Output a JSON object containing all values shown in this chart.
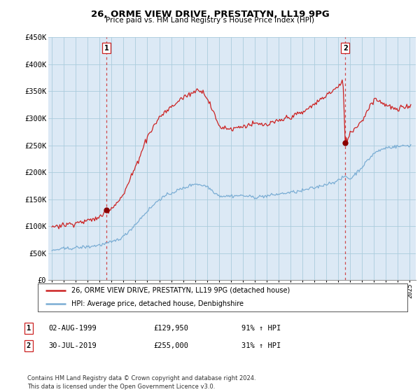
{
  "title": "26, ORME VIEW DRIVE, PRESTATYN, LL19 9PG",
  "subtitle": "Price paid vs. HM Land Registry’s House Price Index (HPI)",
  "ylim": [
    0,
    450000
  ],
  "yticks": [
    0,
    50000,
    100000,
    150000,
    200000,
    250000,
    300000,
    350000,
    400000,
    450000
  ],
  "ytick_labels": [
    "£0",
    "£50K",
    "£100K",
    "£150K",
    "£200K",
    "£250K",
    "£300K",
    "£350K",
    "£400K",
    "£450K"
  ],
  "hpi_color": "#7aadd4",
  "price_color": "#cc2222",
  "sale1_year": 1999.583,
  "sale1_price": 129950,
  "sale2_year": 2019.583,
  "sale2_price": 255000,
  "legend_price_label": "26, ORME VIEW DRIVE, PRESTATYN, LL19 9PG (detached house)",
  "legend_hpi_label": "HPI: Average price, detached house, Denbighshire",
  "table_row1": [
    "1",
    "02-AUG-1999",
    "£129,950",
    "91% ↑ HPI"
  ],
  "table_row2": [
    "2",
    "30-JUL-2019",
    "£255,000",
    "31% ↑ HPI"
  ],
  "footer": "Contains HM Land Registry data © Crown copyright and database right 2024.\nThis data is licensed under the Open Government Licence v3.0.",
  "bg_fill": "#dce9f5",
  "background_color": "#ffffff",
  "grid_color": "#aaccdd"
}
